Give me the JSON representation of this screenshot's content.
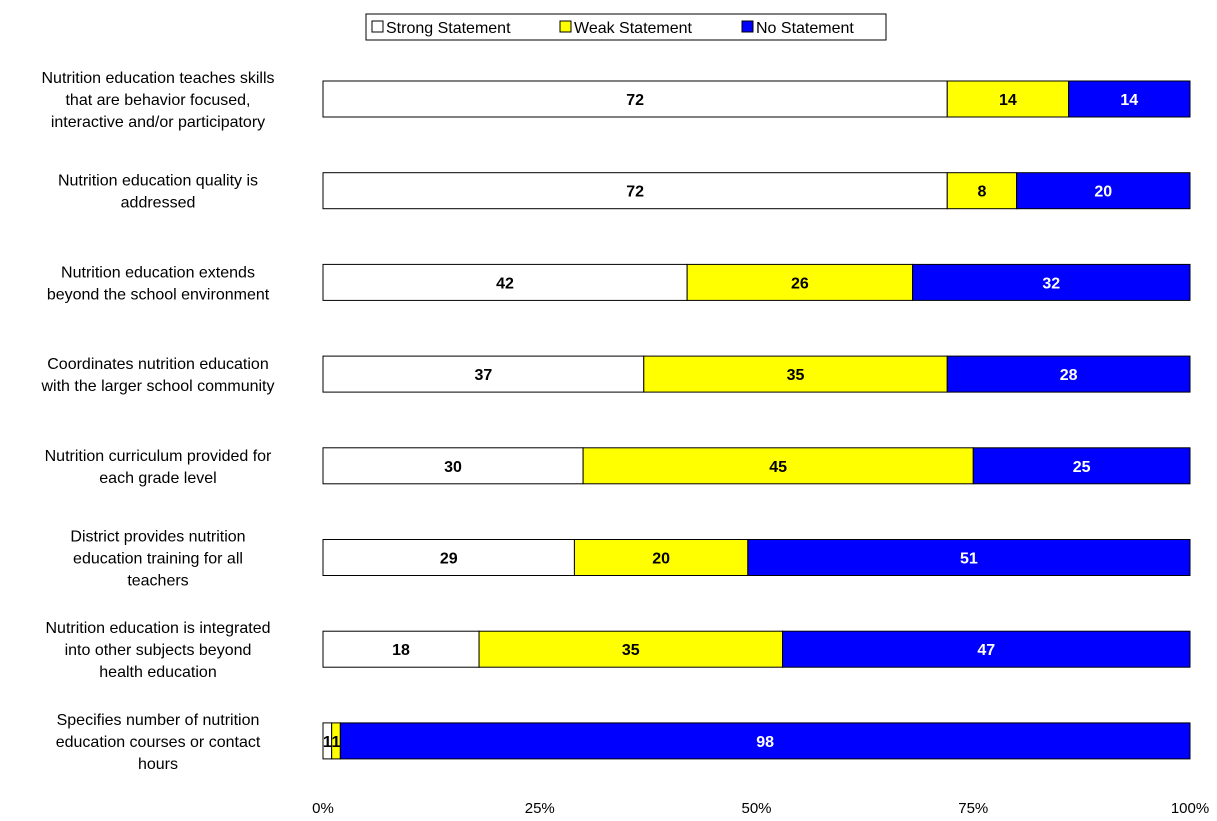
{
  "chart_data": {
    "type": "bar",
    "orientation": "horizontal",
    "stacked": "percent",
    "categories": [
      [
        "Nutrition education teaches skills",
        "that are behavior focused,",
        "interactive and/or participatory"
      ],
      [
        "Nutrition education quality is",
        "addressed"
      ],
      [
        "Nutrition education extends",
        "beyond the school environment"
      ],
      [
        "Coordinates nutrition education",
        "with the larger school community"
      ],
      [
        "Nutrition curriculum provided for",
        "each grade level"
      ],
      [
        "District provides nutrition",
        "education training for all",
        "teachers"
      ],
      [
        "Nutrition education is integrated",
        "into other subjects beyond",
        "health education"
      ],
      [
        "Specifies number of nutrition",
        "education courses or contact",
        "hours"
      ]
    ],
    "series": [
      {
        "name": "Strong Statement",
        "color": "#ffffff",
        "label_color": "#000000",
        "values": [
          72,
          72,
          42,
          37,
          30,
          29,
          18,
          1
        ]
      },
      {
        "name": "Weak Statement",
        "color": "#ffff00",
        "label_color": "#000000",
        "values": [
          14,
          8,
          26,
          35,
          45,
          20,
          35,
          1
        ]
      },
      {
        "name": "No Statement",
        "color": "#0000ff",
        "label_color": "#ffffff",
        "values": [
          14,
          20,
          32,
          28,
          25,
          51,
          47,
          98
        ]
      }
    ],
    "xlim": [
      0,
      100
    ],
    "xticks": [
      "0%",
      "25%",
      "50%",
      "75%",
      "100%"
    ],
    "legend_position": "top",
    "grid": false
  }
}
